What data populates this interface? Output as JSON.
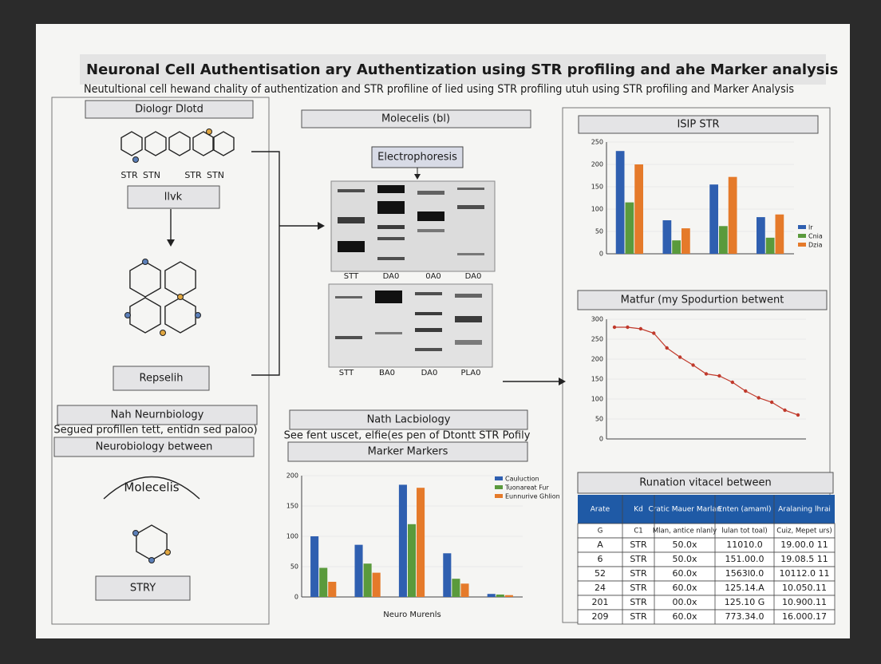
{
  "header": {
    "title": "Neuronal Cell Authentisation ary Authentization using STR profiling and ahe Marker analysis",
    "subtitle": "Neutultional cell hewand chality of authentization and STR profiline of lied using STR profiling utuh using STR profiling and Marker Analysis"
  },
  "left": {
    "box1": "Diologr Dlotd",
    "labels": [
      "STR",
      "STN",
      "STR",
      "STN"
    ],
    "box2": "llvk",
    "box3": "Repselih",
    "box4": "Nah Neurnbiology",
    "note": "Segued profillen tett, entidn sed paloo)",
    "box5": "Neurobiology between",
    "molecule_label": "Molecelis",
    "box6": "STRY"
  },
  "middle": {
    "box1": "Molecelis (bl)",
    "box2": "Electrophoresis",
    "gel1_labels": [
      "STT",
      "DA0",
      "0A0",
      "DA0"
    ],
    "gel2_labels": [
      "STT",
      "BA0",
      "DA0",
      "PLA0"
    ],
    "box3": "Nath Lacbiology",
    "note": "See fent uscet, elfie(es pen of Dtontt STR Pofily",
    "box4": "Marker Markers"
  },
  "right": {
    "box1": "ISIP STR",
    "box2": "Matfur (my Spodurtion betwent",
    "box3": "Runation vitacel between"
  },
  "charts": [
    {
      "type": "bar",
      "categories": [
        null,
        null,
        null,
        null
      ],
      "ylim": [
        0,
        250
      ],
      "yticks": [
        0,
        50,
        100,
        150,
        200,
        250
      ],
      "series": [
        {
          "name": "lr",
          "color": "#2f5fb0",
          "values": [
            230,
            75,
            155,
            82
          ]
        },
        {
          "name": "Cnia",
          "color": "#5a9a3c",
          "values": [
            115,
            30,
            62,
            36
          ]
        },
        {
          "name": "Dzia",
          "color": "#e57a2a",
          "values": [
            200,
            57,
            172,
            88
          ]
        }
      ]
    },
    {
      "type": "line",
      "categories": [
        null,
        null,
        null,
        null,
        null,
        null,
        null,
        null,
        null,
        null,
        null,
        null,
        null,
        null,
        null
      ],
      "ylim": [
        0,
        300
      ],
      "yticks": [
        0,
        50,
        100,
        150,
        200,
        250,
        300
      ],
      "color": "#c0392b",
      "values": [
        280,
        280,
        276,
        265,
        228,
        205,
        185,
        163,
        158,
        142,
        120,
        103,
        92,
        72,
        60
      ]
    },
    {
      "type": "bar",
      "categories": [
        null,
        null,
        null,
        null,
        null
      ],
      "ylim": [
        0,
        200
      ],
      "yticks": [
        0,
        50,
        100,
        150,
        200
      ],
      "xlabel": "Neuro Murenls",
      "series": [
        {
          "name": "Cauluction",
          "color": "#2f5fb0",
          "values": [
            100,
            86,
            185,
            72,
            5
          ]
        },
        {
          "name": "Tuonareat Fur",
          "color": "#5a9a3c",
          "values": [
            48,
            55,
            120,
            30,
            4
          ]
        },
        {
          "name": "Eunnurive Ghlion",
          "color": "#e57a2a",
          "values": [
            25,
            40,
            180,
            22,
            3
          ]
        }
      ]
    }
  ],
  "table": {
    "header": [
      "Arate",
      "Kd",
      "Cratic Mauer Marlan",
      "Enten (amaml)",
      "Aralaning lhrai"
    ],
    "rows": [
      [
        "G",
        "C1",
        "Mlan, antice nlanly",
        "lulan tot toal)",
        "Cuiz, Mepet urs)"
      ],
      [
        "A",
        "STR",
        "50.0x",
        "11010.0",
        "19.00.0 11"
      ],
      [
        "6",
        "STR",
        "50.0x",
        "151.00.0",
        "19.08.5 11"
      ],
      [
        "52",
        "STR",
        "60.0x",
        "1563l0.0",
        "10112.0 11"
      ],
      [
        "24",
        "STR",
        "60.0x",
        "125.14.A",
        "10.050.11"
      ],
      [
        "201",
        "STR",
        "00.0x",
        "125.10 G",
        "10.900.11"
      ],
      [
        "209",
        "STR",
        "60.0x",
        "773.34.0",
        "16.000.17"
      ]
    ]
  }
}
